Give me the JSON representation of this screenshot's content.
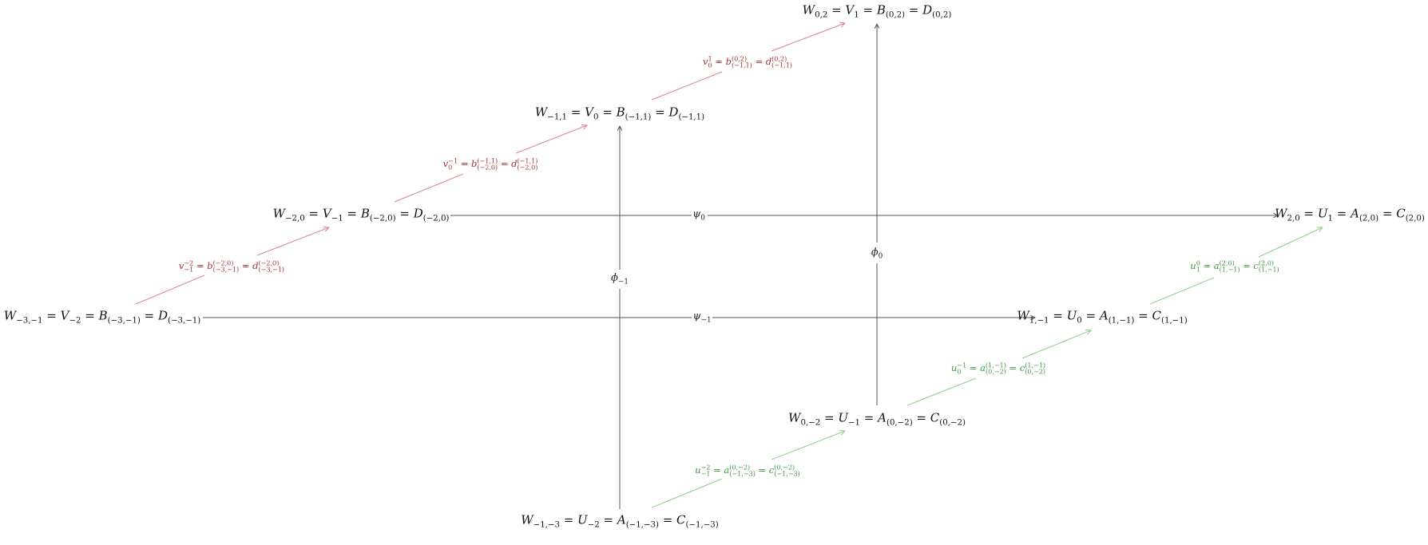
{
  "colors": {
    "main_arrow": "#555555",
    "red_arrow": "#d9898f",
    "green_arrow": "#8fd08f",
    "red_text": "#a83030",
    "green_text": "#3a9a3a"
  },
  "nodes": {
    "w02": "W0,2 = V1 = B(0,2) = D(0,2)",
    "wm11": "W−1,1 = V0 = B(−1,1) = D(−1,1)",
    "wm20": "W−2,0 = V−1 = B(−2,0) = D(−2,0)",
    "wm3m1": "W−3,−1 = V−2 = B(−3,−1) = D(−3,−1)",
    "w20": "W2,0 = U1 = A(2,0) = C(2,0)",
    "w1m1": "W1,−1 = U0 = A(1,−1) = C(1,−1)",
    "w0m2": "W0,−2 = U−1 = A(0,−2) = C(0,−2)",
    "wm1m3": "W−1,−3 = U−2 = A(−1,−3) = C(−1,−3)"
  },
  "maps": {
    "psi0": "ψ0",
    "psim1": "ψ−1",
    "phi0": "ϕ0",
    "phim1": "ϕ−1",
    "v0_1": "v01 = b(0,2)(−1,1) = d(0,2)(−1,1)",
    "vm1_0": "v0−1 = b(−1,1)(−2,0) = d(−1,1)(−2,0)",
    "vm2_m1": "v−1−2 = b(−2,0)(−3,−1) = d(−2,0)(−3,−1)",
    "u0_1": "u10 = a(2,0)(1,−1) = c(2,0)(1,−1)",
    "um1_0": "u0−1 = a(1,−1)(0,−2) = c(1,−1)(0,−2)",
    "um2_m1": "u−1−2 = a(0,−2)(−1,−3) = c(0,−2)(−1,−3)"
  }
}
